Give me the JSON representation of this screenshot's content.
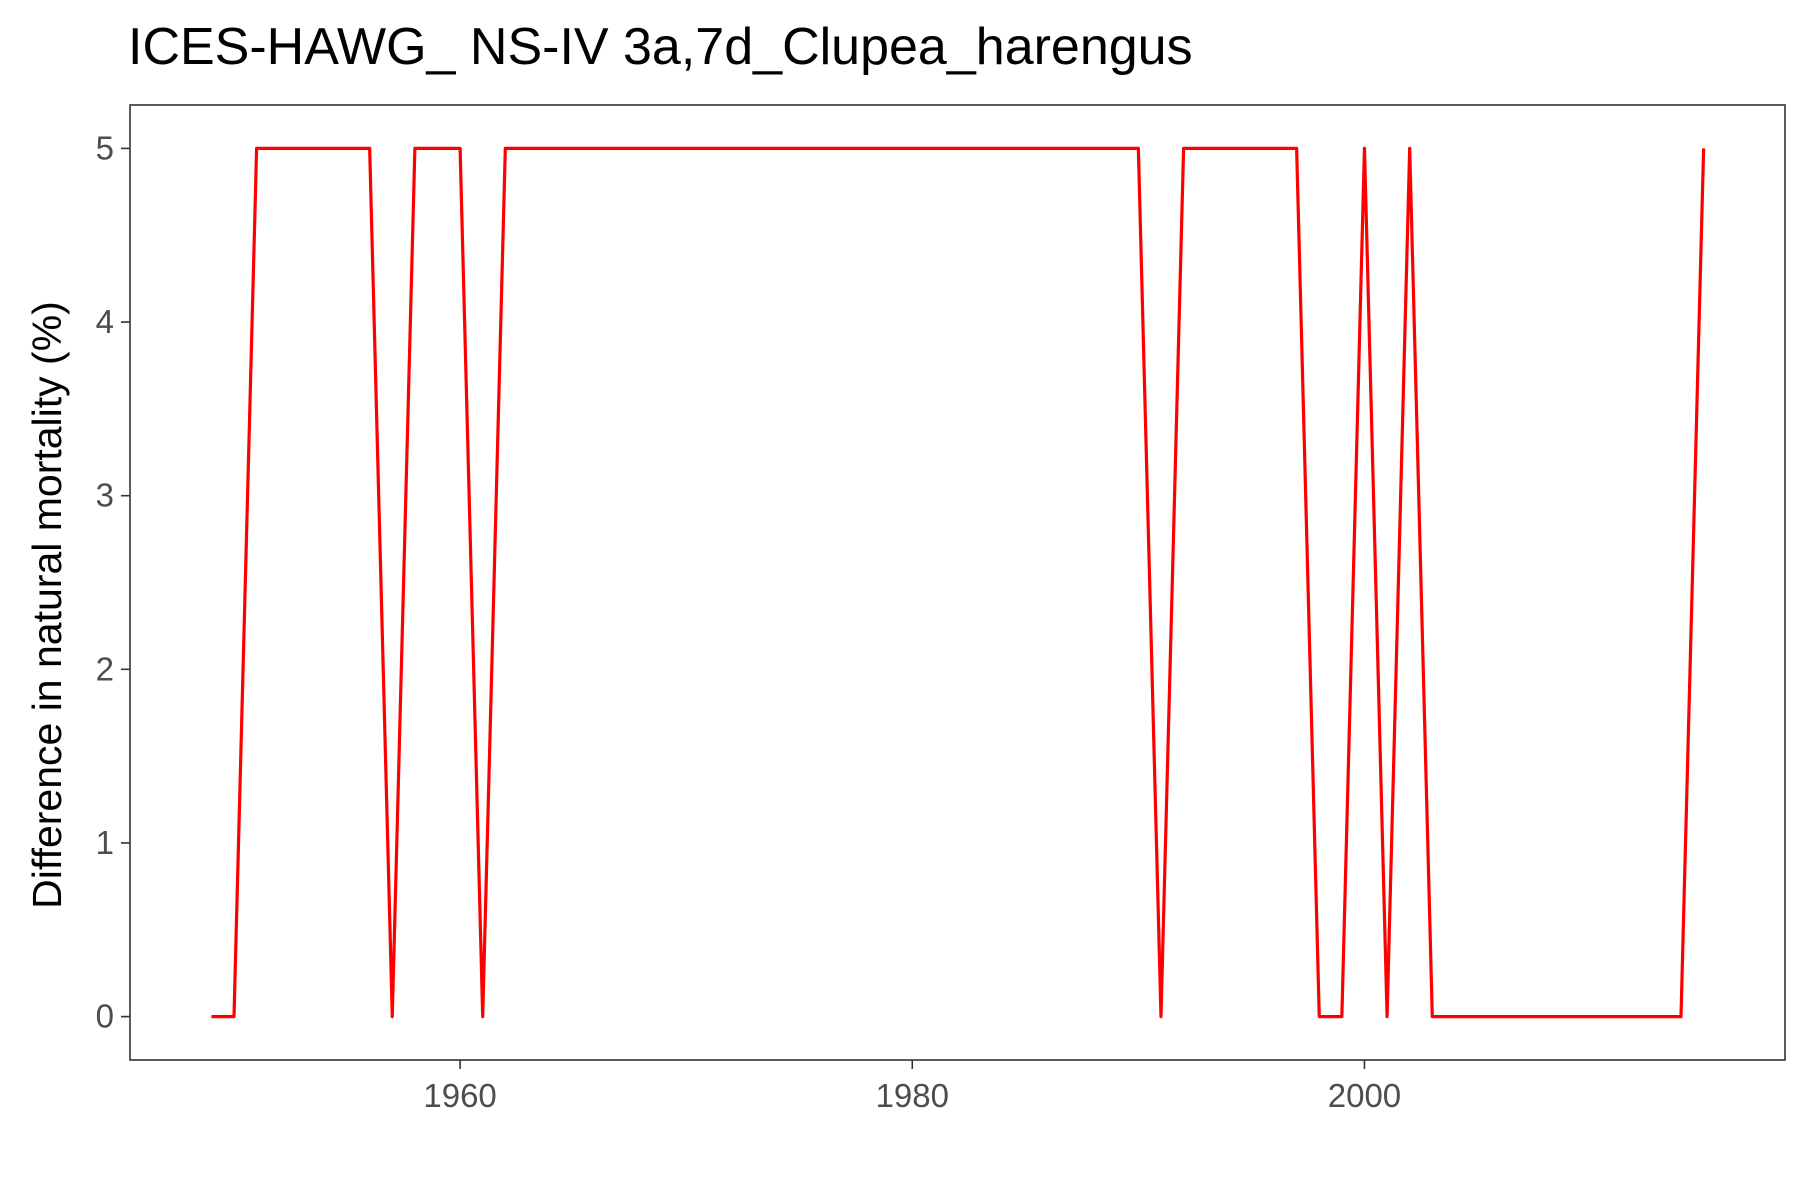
{
  "chart_data": {
    "type": "line",
    "title": "ICES-HAWG_ NS-IV 3a,7d_Clupea_harengus",
    "xlabel": "",
    "ylabel": "Difference in natural mortality (%)",
    "xlim": [
      1945.4,
      2018.6
    ],
    "ylim": [
      -0.25,
      5.25
    ],
    "x_ticks": [
      1960,
      1980,
      2000
    ],
    "y_ticks": [
      0,
      1,
      2,
      3,
      4,
      5
    ],
    "grid": false,
    "legend": "none",
    "series": [
      {
        "color": "#ff0000",
        "x": [
          1949,
          1950,
          1951,
          1952,
          1953,
          1954,
          1955,
          1956,
          1957,
          1958,
          1959,
          1960,
          1961,
          1962,
          1963,
          1964,
          1965,
          1966,
          1967,
          1968,
          1969,
          1970,
          1971,
          1972,
          1973,
          1974,
          1975,
          1976,
          1977,
          1978,
          1979,
          1980,
          1981,
          1982,
          1983,
          1984,
          1985,
          1986,
          1987,
          1988,
          1989,
          1990,
          1991,
          1992,
          1993,
          1994,
          1995,
          1996,
          1997,
          1998,
          1999,
          2000,
          2001,
          2002,
          2003,
          2004,
          2005,
          2006,
          2007,
          2008,
          2009,
          2010,
          2011,
          2012,
          2013,
          2014,
          2015
        ],
        "values": [
          0,
          0,
          5,
          5,
          5,
          5,
          5,
          5,
          0,
          5,
          5,
          5,
          0,
          5,
          5,
          5,
          5,
          5,
          5,
          5,
          5,
          5,
          5,
          5,
          5,
          5,
          5,
          5,
          5,
          5,
          5,
          5,
          5,
          5,
          5,
          5,
          5,
          5,
          5,
          5,
          5,
          5,
          0,
          5,
          5,
          5,
          5,
          5,
          5,
          0,
          0,
          5,
          0,
          5,
          0,
          0,
          0,
          0,
          0,
          0,
          0,
          0,
          0,
          0,
          0,
          0,
          5
        ]
      }
    ]
  }
}
